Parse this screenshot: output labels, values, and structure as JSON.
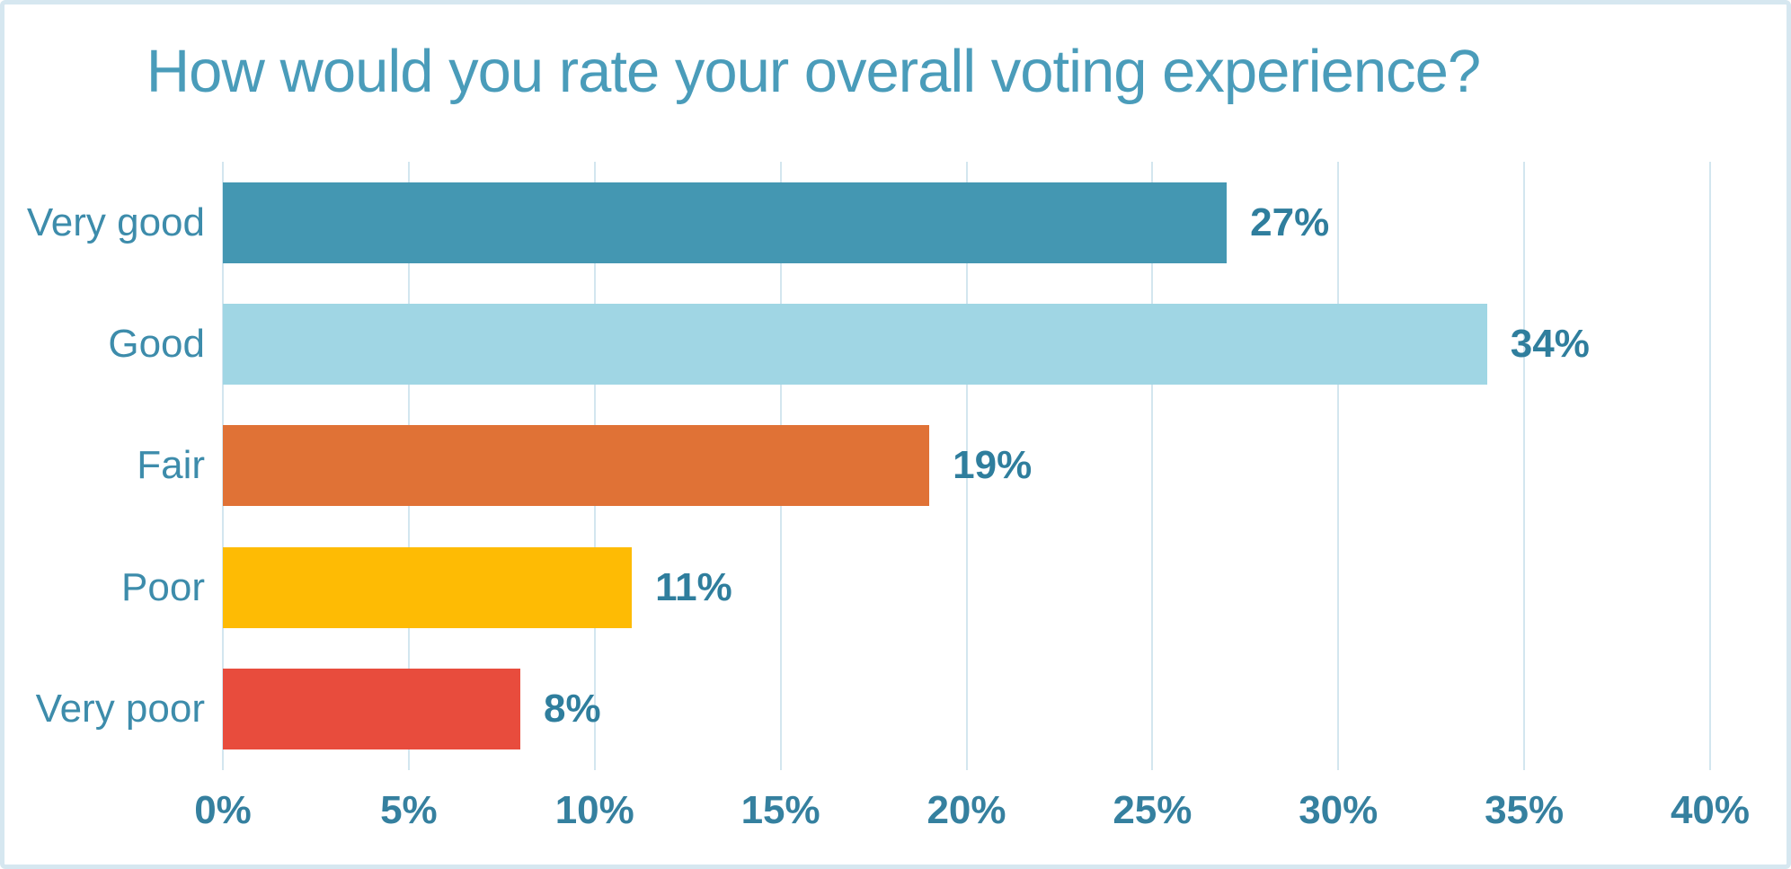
{
  "title": "How would you rate your overall voting experience?",
  "chart_data": {
    "type": "bar",
    "orientation": "horizontal",
    "title": "How would you rate your overall voting experience?",
    "categories": [
      "Very good",
      "Good",
      "Fair",
      "Poor",
      "Very poor"
    ],
    "values": [
      27,
      34,
      19,
      11,
      8
    ],
    "value_labels": [
      "27%",
      "34%",
      "19%",
      "11%",
      "8%"
    ],
    "bar_colors": [
      "#4497b2",
      "#a0d6e4",
      "#e07236",
      "#febb04",
      "#e84c3d"
    ],
    "xlabel": "",
    "ylabel": "",
    "x_axis": {
      "min": 0,
      "max": 40,
      "step": 5,
      "ticks": [
        "0%",
        "5%",
        "10%",
        "15%",
        "20%",
        "25%",
        "30%",
        "35%",
        "40%"
      ]
    },
    "grid": true,
    "legend": false,
    "colors": {
      "title_text": "#4a9cba",
      "category_text": "#3d8cab",
      "tick_text": "#35809f",
      "value_text": "#2f7e9d",
      "gridline": "#d3e6ef",
      "frame_border": "#d6e7f0",
      "background": "#ffffff"
    }
  }
}
